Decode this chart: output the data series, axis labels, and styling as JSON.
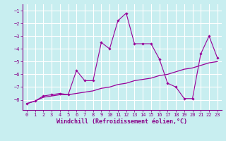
{
  "xlabel": "Windchill (Refroidissement éolien,°C)",
  "ylabel": "",
  "background_color": "#c8eef0",
  "line_color": "#990099",
  "grid_color": "#ffffff",
  "x_values": [
    0,
    1,
    2,
    3,
    4,
    5,
    6,
    7,
    8,
    9,
    10,
    11,
    12,
    13,
    14,
    15,
    16,
    17,
    18,
    19,
    20,
    21,
    22,
    23
  ],
  "y_jagged": [
    -8.3,
    -8.1,
    -7.7,
    -7.6,
    -7.5,
    -7.6,
    -5.7,
    -6.5,
    -6.5,
    -3.5,
    -4.0,
    -1.8,
    -1.2,
    -3.6,
    -3.6,
    -3.6,
    -4.8,
    -6.7,
    -7.0,
    -7.9,
    -7.9,
    -4.4,
    -3.0,
    -4.7
  ],
  "y_smooth": [
    -8.3,
    -8.1,
    -7.8,
    -7.7,
    -7.6,
    -7.6,
    -7.5,
    -7.4,
    -7.3,
    -7.1,
    -7.0,
    -6.8,
    -6.7,
    -6.5,
    -6.4,
    -6.3,
    -6.1,
    -6.0,
    -5.8,
    -5.6,
    -5.5,
    -5.3,
    -5.1,
    -5.0
  ],
  "xlim": [
    -0.5,
    23.5
  ],
  "ylim": [
    -8.8,
    -0.5
  ],
  "yticks": [
    -1,
    -2,
    -3,
    -4,
    -5,
    -6,
    -7,
    -8
  ],
  "xticks": [
    0,
    1,
    2,
    3,
    4,
    5,
    6,
    7,
    8,
    9,
    10,
    11,
    12,
    13,
    14,
    15,
    16,
    17,
    18,
    19,
    20,
    21,
    22,
    23
  ],
  "font_color": "#880088",
  "tick_fontsize": 5.0,
  "xlabel_fontsize": 6.0,
  "spine_color": "#880088"
}
